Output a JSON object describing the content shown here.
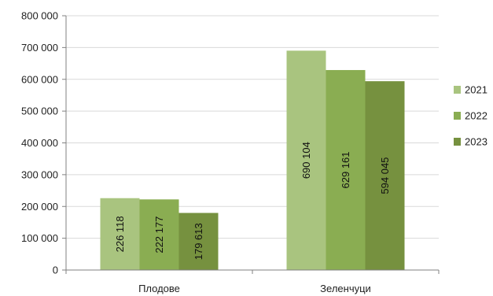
{
  "chart_data": {
    "type": "bar",
    "categories": [
      "Плодове",
      "Зеленчуци"
    ],
    "series": [
      {
        "name": "2021",
        "color": "#a9c47f",
        "values": [
          226118,
          690104
        ],
        "labels": [
          "226 118",
          "690 104"
        ]
      },
      {
        "name": "2022",
        "color": "#8aad52",
        "values": [
          222177,
          629161
        ],
        "labels": [
          "222 177",
          "629 161"
        ]
      },
      {
        "name": "2023",
        "color": "#76913f",
        "values": [
          179613,
          594045
        ],
        "labels": [
          "179 613",
          "594 045"
        ]
      }
    ],
    "ylim": [
      0,
      800000
    ],
    "yticks": [
      0,
      100000,
      200000,
      300000,
      400000,
      500000,
      600000,
      700000,
      800000
    ],
    "ytick_labels": [
      "0",
      "100 000",
      "200 000",
      "300 000",
      "400 000",
      "500 000",
      "600 000",
      "700 000",
      "800 000"
    ],
    "grid": true,
    "legend": "right",
    "title": "",
    "xlabel": "",
    "ylabel": ""
  }
}
